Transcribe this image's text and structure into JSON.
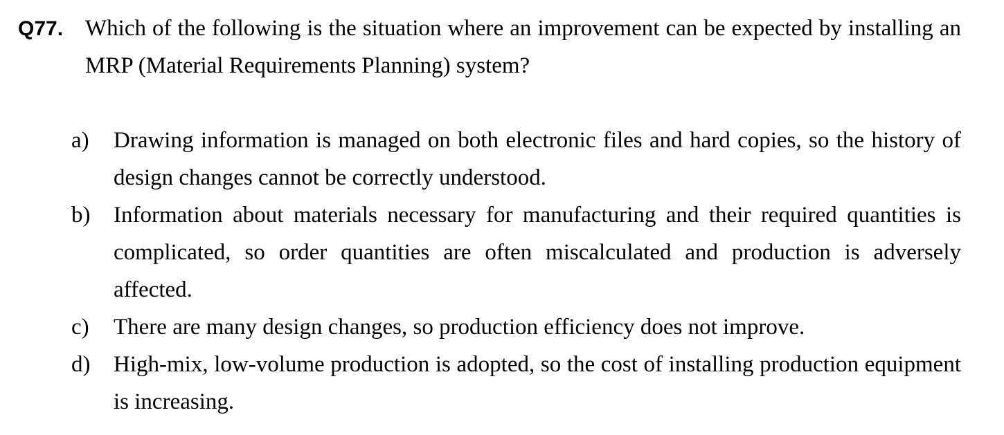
{
  "question": {
    "number": "Q77.",
    "text": "Which of the following is the situation where an improvement can be expected by installing an MRP (Material Requirements Planning) system?"
  },
  "options": [
    {
      "label": "a)",
      "text": "Drawing information is managed on both electronic files and hard copies, so the history of design changes cannot be correctly understood."
    },
    {
      "label": "b)",
      "text": "Information about materials necessary for manufacturing and their required quantities is complicated, so order quantities are often miscalculated and production is adversely affected."
    },
    {
      "label": "c)",
      "text": "There are many design changes, so production efficiency does not improve."
    },
    {
      "label": "d)",
      "text": "High-mix, low-volume production is adopted, so the cost of installing production equipment is increasing."
    }
  ]
}
